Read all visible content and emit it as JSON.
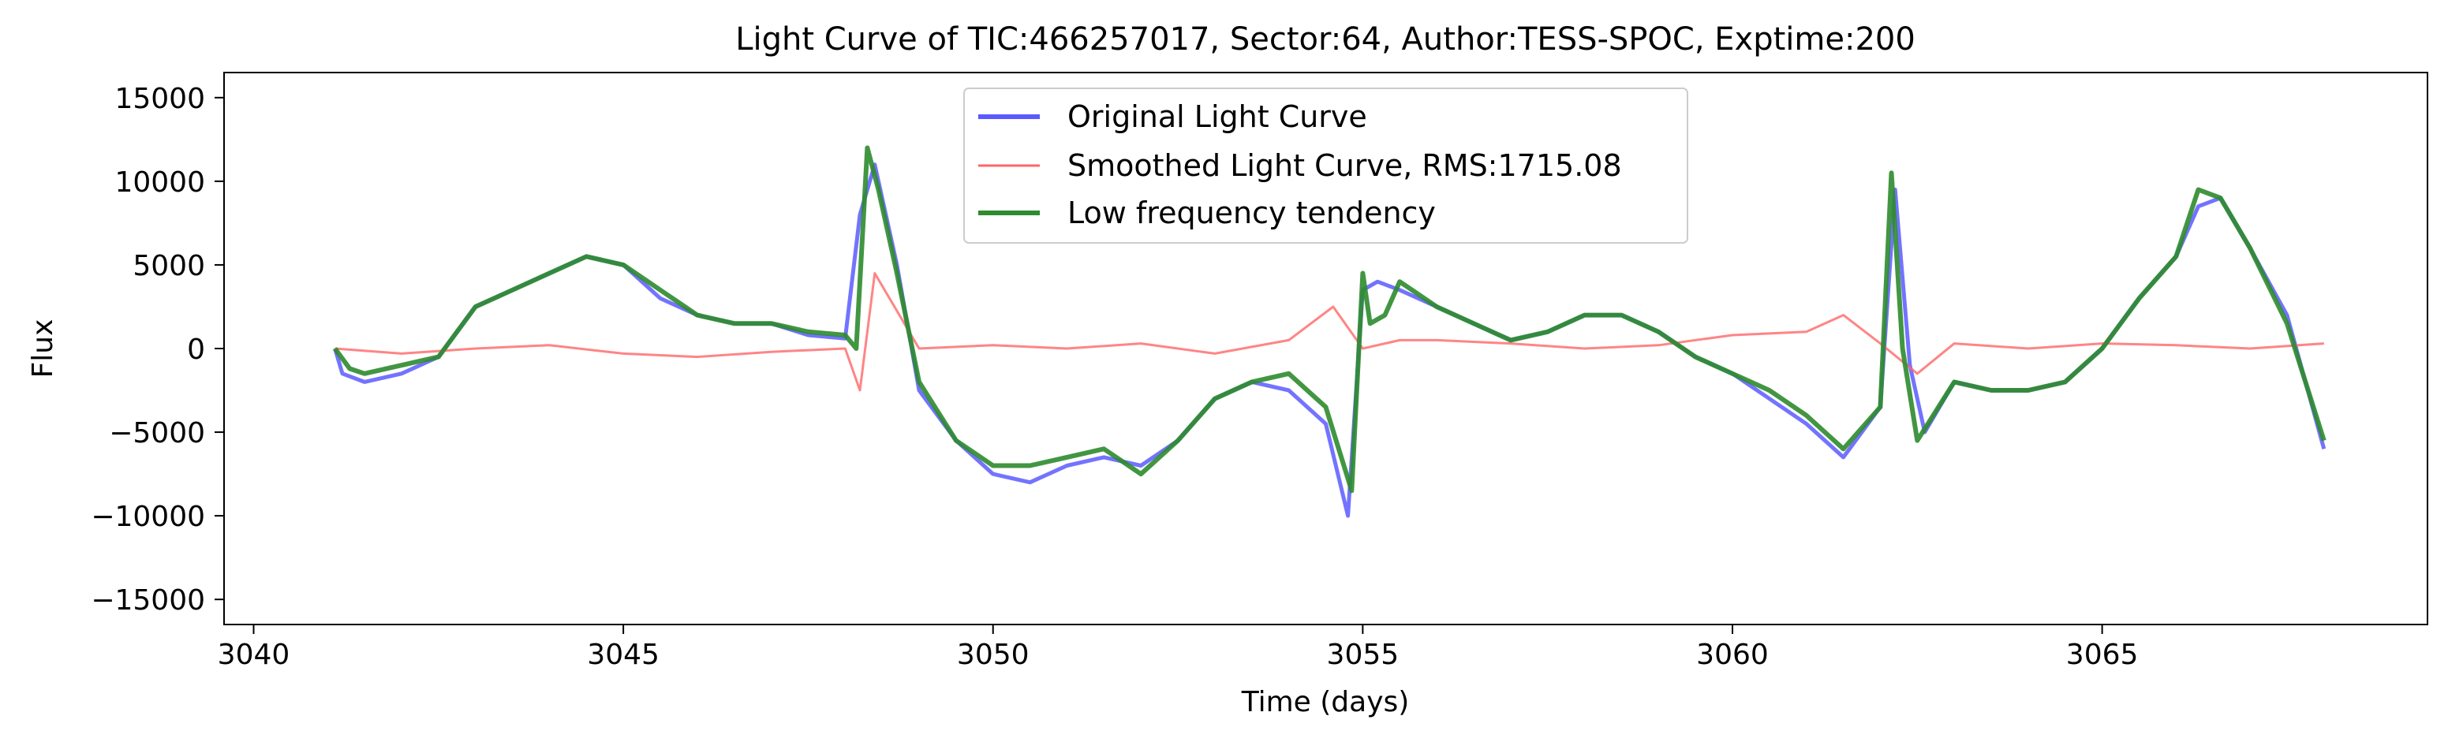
{
  "chart_data": {
    "type": "line",
    "title": "Light Curve of TIC:466257017, Sector:64, Author:TESS-SPOC, Exptime:200",
    "xlabel": "Time (days)",
    "ylabel": "Flux",
    "xlim": [
      3039.6,
      3069.4
    ],
    "ylim": [
      -16500,
      16500
    ],
    "x_ticks": [
      3040,
      3045,
      3050,
      3055,
      3060,
      3065
    ],
    "y_ticks": [
      -15000,
      -10000,
      -5000,
      0,
      5000,
      10000,
      15000
    ],
    "grid": false,
    "legend_position": "upper center",
    "colors": {
      "original": "#5a5aff",
      "smoothed": "#ff6666",
      "tendency": "#2e8b2e"
    },
    "series": [
      {
        "name": "Original Light Curve",
        "color": "#5a5aff",
        "x": [
          3041.1,
          3041.2,
          3041.5,
          3042.0,
          3042.5,
          3043.0,
          3043.5,
          3044.0,
          3044.5,
          3045.0,
          3045.5,
          3046.0,
          3046.5,
          3047.0,
          3047.5,
          3048.0,
          3048.2,
          3048.4,
          3048.7,
          3049.0,
          3049.5,
          3050.0,
          3050.5,
          3051.0,
          3051.5,
          3052.0,
          3052.5,
          3053.0,
          3053.5,
          3054.0,
          3054.5,
          3054.8,
          3055.0,
          3055.2,
          3055.5,
          3056.0,
          3056.5,
          3057.0,
          3057.5,
          3058.0,
          3058.5,
          3059.0,
          3059.5,
          3060.0,
          3060.5,
          3061.0,
          3061.5,
          3062.0,
          3062.2,
          3062.4,
          3062.6,
          3063.0,
          3063.5,
          3064.0,
          3064.5,
          3065.0,
          3065.5,
          3066.0,
          3066.3,
          3066.6,
          3067.0,
          3067.5,
          3068.0
        ],
        "y": [
          0,
          -1500,
          -2000,
          -1500,
          -500,
          2500,
          3500,
          4500,
          5500,
          5000,
          3000,
          2000,
          1500,
          1500,
          800,
          600,
          8000,
          11000,
          5000,
          -2500,
          -5500,
          -7500,
          -8000,
          -7000,
          -6500,
          -7000,
          -5500,
          -3000,
          -2000,
          -2500,
          -4500,
          -10000,
          3500,
          4000,
          3500,
          2500,
          1500,
          500,
          1000,
          2000,
          2000,
          1000,
          -500,
          -1500,
          -3000,
          -4500,
          -6500,
          -3500,
          9500,
          -1000,
          -5000,
          -2000,
          -2500,
          -2500,
          -2000,
          0,
          3000,
          5500,
          8500,
          9000,
          6000,
          2000,
          -6000
        ]
      },
      {
        "name": "Smoothed Light Curve, RMS:1715.08",
        "color": "#ff6666",
        "x": [
          3041.1,
          3042.0,
          3043.0,
          3044.0,
          3045.0,
          3046.0,
          3047.0,
          3048.0,
          3048.2,
          3048.4,
          3049.0,
          3050.0,
          3051.0,
          3052.0,
          3053.0,
          3054.0,
          3054.6,
          3055.0,
          3055.5,
          3056.0,
          3057.0,
          3058.0,
          3059.0,
          3060.0,
          3061.0,
          3061.5,
          3062.0,
          3062.5,
          3063.0,
          3064.0,
          3065.0,
          3066.0,
          3067.0,
          3068.0
        ],
        "y": [
          0,
          -300,
          0,
          200,
          -300,
          -500,
          -200,
          0,
          -2500,
          4500,
          0,
          200,
          0,
          300,
          -300,
          500,
          2500,
          0,
          500,
          500,
          300,
          0,
          200,
          800,
          1000,
          2000,
          300,
          -1500,
          300,
          0,
          300,
          200,
          0,
          300
        ]
      },
      {
        "name": "Low frequency tendency",
        "color": "#2e8b2e",
        "x": [
          3041.1,
          3041.3,
          3041.5,
          3042.0,
          3042.5,
          3043.0,
          3043.5,
          3044.0,
          3044.5,
          3045.0,
          3045.5,
          3046.0,
          3046.5,
          3047.0,
          3047.5,
          3048.0,
          3048.15,
          3048.3,
          3048.45,
          3048.7,
          3049.0,
          3049.5,
          3050.0,
          3050.5,
          3051.0,
          3051.5,
          3052.0,
          3052.5,
          3053.0,
          3053.5,
          3054.0,
          3054.5,
          3054.85,
          3055.0,
          3055.1,
          3055.3,
          3055.5,
          3056.0,
          3056.5,
          3057.0,
          3057.5,
          3058.0,
          3058.5,
          3059.0,
          3059.5,
          3060.0,
          3060.5,
          3061.0,
          3061.5,
          3062.0,
          3062.15,
          3062.3,
          3062.5,
          3063.0,
          3063.5,
          3064.0,
          3064.5,
          3065.0,
          3065.5,
          3066.0,
          3066.3,
          3066.6,
          3067.0,
          3067.5,
          3068.0
        ],
        "y": [
          0,
          -1200,
          -1500,
          -1000,
          -500,
          2500,
          3500,
          4500,
          5500,
          5000,
          3500,
          2000,
          1500,
          1500,
          1000,
          800,
          0,
          12000,
          9500,
          4500,
          -2000,
          -5500,
          -7000,
          -7000,
          -6500,
          -6000,
          -7500,
          -5500,
          -3000,
          -2000,
          -1500,
          -3500,
          -8500,
          4500,
          1500,
          2000,
          4000,
          2500,
          1500,
          500,
          1000,
          2000,
          2000,
          1000,
          -500,
          -1500,
          -2500,
          -4000,
          -6000,
          -3500,
          10500,
          0,
          -5500,
          -2000,
          -2500,
          -2500,
          -2000,
          0,
          3000,
          5500,
          9500,
          9000,
          6000,
          1500,
          -5500
        ]
      }
    ]
  }
}
